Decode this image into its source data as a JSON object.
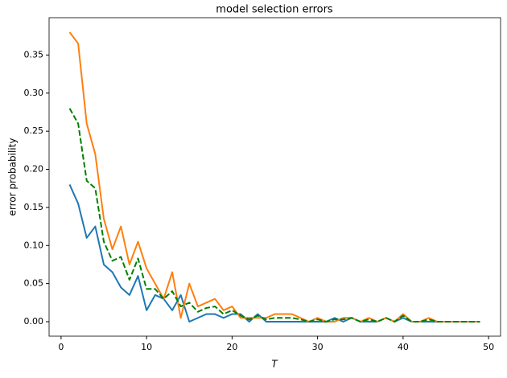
{
  "chart_data": {
    "type": "line",
    "title": "model selection errors",
    "xlabel": "T",
    "ylabel": "error probability",
    "x": [
      1,
      2,
      3,
      4,
      5,
      6,
      7,
      8,
      9,
      10,
      11,
      12,
      13,
      14,
      15,
      16,
      17,
      18,
      19,
      20,
      21,
      22,
      23,
      24,
      25,
      26,
      27,
      28,
      29,
      30,
      31,
      32,
      33,
      34,
      35,
      36,
      37,
      38,
      39,
      40,
      41,
      42,
      43,
      44,
      45,
      46,
      47,
      48,
      49
    ],
    "series": [
      {
        "color": "#1f77b4",
        "dashed": false,
        "values": [
          0.18,
          0.155,
          0.11,
          0.125,
          0.075,
          0.065,
          0.045,
          0.035,
          0.06,
          0.015,
          0.035,
          0.03,
          0.015,
          0.035,
          0,
          0.005,
          0.01,
          0.01,
          0.005,
          0.01,
          0.01,
          0,
          0.01,
          0,
          0,
          0,
          0,
          0,
          0,
          0,
          0,
          0.005,
          0,
          0.005,
          0,
          0,
          0,
          0.005,
          0,
          0.005,
          0,
          0,
          0,
          0,
          0,
          0,
          0,
          0,
          0
        ]
      },
      {
        "color": "#ff7f0e",
        "dashed": false,
        "values": [
          0.38,
          0.365,
          0.26,
          0.22,
          0.135,
          0.095,
          0.125,
          0.075,
          0.105,
          0.07,
          0.05,
          0.03,
          0.065,
          0.005,
          0.05,
          0.02,
          0.025,
          0.03,
          0.015,
          0.02,
          0.005,
          0.005,
          0.005,
          0.005,
          0.01,
          0.01,
          0.01,
          0.005,
          0,
          0.005,
          0,
          0,
          0.005,
          0.005,
          0,
          0.005,
          0,
          0.005,
          0,
          0.01,
          0,
          0,
          0.005,
          0,
          0,
          0,
          0,
          0,
          0
        ]
      },
      {
        "color": "#008000",
        "dashed": true,
        "values": [
          0.28,
          0.26,
          0.185,
          0.175,
          0.105,
          0.08,
          0.085,
          0.055,
          0.083,
          0.043,
          0.043,
          0.03,
          0.04,
          0.02,
          0.025,
          0.013,
          0.018,
          0.02,
          0.01,
          0.015,
          0.008,
          0.003,
          0.008,
          0.003,
          0.005,
          0.005,
          0.005,
          0.003,
          0,
          0.003,
          0,
          0.003,
          0.003,
          0.005,
          0,
          0.003,
          0,
          0.005,
          0,
          0.008,
          0,
          0,
          0.003,
          0,
          0,
          0,
          0,
          0,
          0
        ]
      }
    ],
    "xlim": [
      -1.4,
      51.4
    ],
    "ylim": [
      -0.019,
      0.399
    ],
    "xticks": [
      0,
      10,
      20,
      30,
      40,
      50
    ],
    "yticks": [
      {
        "value": 0,
        "label": "0.00"
      },
      {
        "value": 0.05,
        "label": "0.05"
      },
      {
        "value": 0.1,
        "label": "0.10"
      },
      {
        "value": 0.15,
        "label": "0.15"
      },
      {
        "value": 0.2,
        "label": "0.20"
      },
      {
        "value": 0.25,
        "label": "0.25"
      },
      {
        "value": 0.3,
        "label": "0.30"
      },
      {
        "value": 0.35,
        "label": "0.35"
      }
    ],
    "grid": false
  }
}
